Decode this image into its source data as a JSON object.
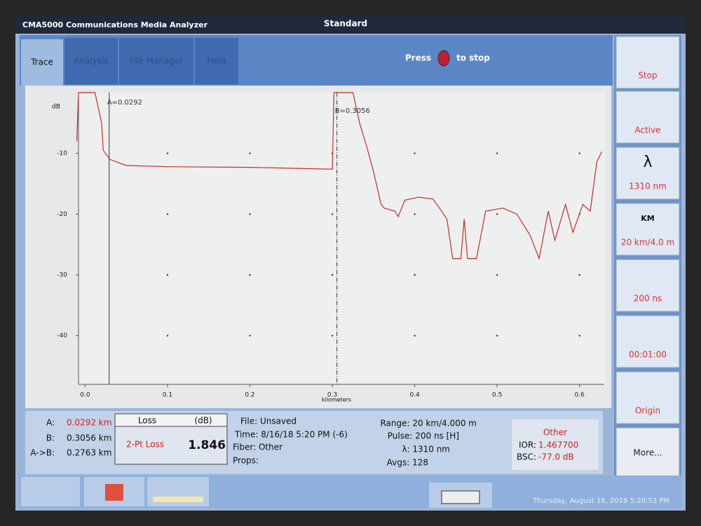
{
  "header": {
    "app_title": "CMA5000 Communications Media Analyzer",
    "mode": "Standard"
  },
  "tabs": [
    "Trace",
    "Analysis",
    "File Manager",
    "Help"
  ],
  "status": {
    "before": "Press",
    "after": "to stop"
  },
  "side_buttons": [
    {
      "label": "Stop"
    },
    {
      "label": "Active"
    },
    {
      "icon": "λ",
      "label": "1310 nm"
    },
    {
      "icon": "KM",
      "label": "20 km/4.0 m"
    },
    {
      "label": "200 ns"
    },
    {
      "label": "00:01:00"
    },
    {
      "label": "Origin"
    },
    {
      "label": "More..."
    }
  ],
  "markers_panel": {
    "rows": [
      [
        "A:",
        "0.0292 km"
      ],
      [
        "B:",
        "0.3056 km"
      ],
      [
        "A->B:",
        "0.2763 km"
      ]
    ]
  },
  "loss_panel": {
    "title": "Loss",
    "unit": "(dB)",
    "label": "2-Pt Loss",
    "value": "1.846"
  },
  "file_panel": [
    "File: Unsaved",
    "Time: 8/16/18 5:20 PM (-6)",
    "Fiber: Other",
    "Props:"
  ],
  "acq_panel": [
    "Range: 20 km/4.000 m",
    "Pulse: 200 ns [H]",
    "λ: 1310 nm",
    "Avgs: 128"
  ],
  "other_panel": {
    "title": "Other",
    "ior_label": "IOR:",
    "ior": "1.467700",
    "bsc_label": "BSC:",
    "bsc": "-77.0 dB"
  },
  "footer": {
    "datetime": "Thursday, August 16, 2018 5:20:53 PM"
  },
  "chart_data": {
    "type": "line",
    "y_label": "dB",
    "x_label": "kilometers",
    "x": [
      -0.01,
      -0.008,
      0.012,
      0.02,
      0.022,
      0.03,
      0.05,
      0.1,
      0.2,
      0.3,
      0.302,
      0.325,
      0.333,
      0.342,
      0.35,
      0.359,
      0.363,
      0.376,
      0.38,
      0.388,
      0.405,
      0.422,
      0.43,
      0.439,
      0.446,
      0.456,
      0.46,
      0.464,
      0.475,
      0.486,
      0.507,
      0.524,
      0.54,
      0.551,
      0.562,
      0.57,
      0.583,
      0.592,
      0.604,
      0.613,
      0.621,
      0.627
    ],
    "series": [
      {
        "name": "Trace",
        "color": "#d02828",
        "values": [
          -8,
          0,
          0,
          -5,
          -9.5,
          -11,
          -12,
          -12.2,
          -12.3,
          -12.6,
          0,
          0,
          -5,
          -9,
          -13,
          -18.3,
          -19,
          -19.5,
          -20.4,
          -17.7,
          -17.2,
          -17.5,
          -19,
          -20.8,
          -27.3,
          -27.3,
          -20.8,
          -27.3,
          -27.3,
          -19.5,
          -19,
          -20,
          -23.5,
          -27.3,
          -19.5,
          -24.3,
          -18.4,
          -23,
          -18.4,
          -19.5,
          -11.4,
          -9.7
        ]
      }
    ],
    "markers": [
      {
        "label": "A=0.0292",
        "x": 0.0292
      },
      {
        "label": "B=0.3056",
        "x": 0.3056
      }
    ],
    "xlim": [
      -0.008,
      0.63
    ],
    "ylim": [
      -48,
      0
    ],
    "xticks": [
      {
        "value": 0,
        "label": "0.0"
      },
      0.1,
      0.2,
      0.3,
      0.4,
      0.5,
      0.6
    ],
    "yticks": [
      -10,
      -20,
      -30,
      -40
    ]
  }
}
